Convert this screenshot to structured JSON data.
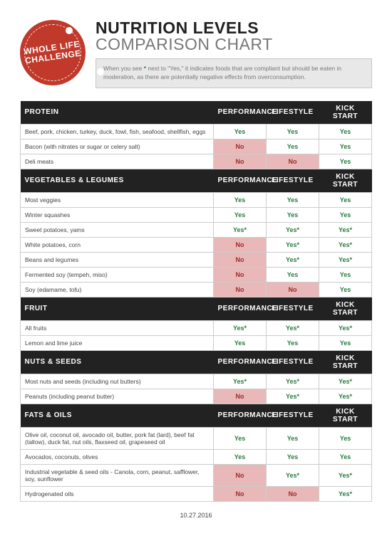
{
  "badge": {
    "line1": "WHOLE LIFE",
    "line2": "CHALLENGE"
  },
  "title": {
    "strong": "NUTRITION LEVELS ",
    "light": "COMPARISON CHART"
  },
  "note": {
    "pre": "When you see ",
    "mid": " next to \"Yes,\" it indicates foods that are compliant but should be eaten in moderation, as there are potentially negative effects from overconsumption."
  },
  "columns": [
    "PERFORMANCE",
    "LIFESTYLE",
    "KICK START"
  ],
  "colors": {
    "yes": "#2a7a43",
    "no": "#9c2a2a",
    "noBg": "#e9b9b9",
    "headerBg": "#222222"
  },
  "sections": [
    {
      "name": "PROTEIN",
      "rows": [
        {
          "label": "Beef, pork, chicken, turkey, duck, fowl, fish, seafood, shellfish, eggs",
          "v": [
            "Yes",
            "Yes",
            "Yes"
          ]
        },
        {
          "label": "Bacon (with nitrates or sugar or celery salt)",
          "v": [
            "No",
            "Yes",
            "Yes"
          ]
        },
        {
          "label": "Deli meats",
          "v": [
            "No",
            "No",
            "Yes"
          ]
        }
      ]
    },
    {
      "name": "VEGETABLES & LEGUMES",
      "rows": [
        {
          "label": "Most veggies",
          "v": [
            "Yes",
            "Yes",
            "Yes"
          ]
        },
        {
          "label": "Winter squashes",
          "v": [
            "Yes",
            "Yes",
            "Yes"
          ]
        },
        {
          "label": "Sweet potatoes, yams",
          "v": [
            "Yes*",
            "Yes*",
            "Yes*"
          ]
        },
        {
          "label": "White potatoes, corn",
          "v": [
            "No",
            "Yes*",
            "Yes*"
          ]
        },
        {
          "label": "Beans and legumes",
          "v": [
            "No",
            "Yes*",
            "Yes*"
          ]
        },
        {
          "label": "Fermented soy (tempeh, miso)",
          "v": [
            "No",
            "Yes",
            "Yes"
          ]
        },
        {
          "label": "Soy (edamame, tofu)",
          "v": [
            "No",
            "No",
            "Yes"
          ]
        }
      ]
    },
    {
      "name": "FRUIT",
      "rows": [
        {
          "label": "All fruits",
          "v": [
            "Yes*",
            "Yes*",
            "Yes*"
          ]
        },
        {
          "label": "Lemon and lime juice",
          "v": [
            "Yes",
            "Yes",
            "Yes"
          ]
        }
      ]
    },
    {
      "name": "NUTS & SEEDS",
      "rows": [
        {
          "label": "Most nuts and seeds (including nut butters)",
          "v": [
            "Yes*",
            "Yes*",
            "Yes*"
          ]
        },
        {
          "label": "Peanuts (including peanut butter)",
          "v": [
            "No",
            "Yes*",
            "Yes*"
          ]
        }
      ]
    },
    {
      "name": "FATS & OILS",
      "rows": [
        {
          "label": "Olive oil, coconut oil, avocado oil, butter, pork fat (lard), beef fat (tallow), duck fat, nut oils, flaxseed oil, grapeseed oil",
          "v": [
            "Yes",
            "Yes",
            "Yes"
          ]
        },
        {
          "label": "Avocados, coconuts, olives",
          "v": [
            "Yes",
            "Yes",
            "Yes"
          ]
        },
        {
          "label": "Industrial vegetable & seed oils - Canola, corn, peanut, safflower, soy, sunflower",
          "v": [
            "No",
            "Yes*",
            "Yes*"
          ]
        },
        {
          "label": "Hydrogenated oils",
          "v": [
            "No",
            "No",
            "Yes*"
          ]
        }
      ]
    }
  ],
  "footer": "10.27.2016"
}
